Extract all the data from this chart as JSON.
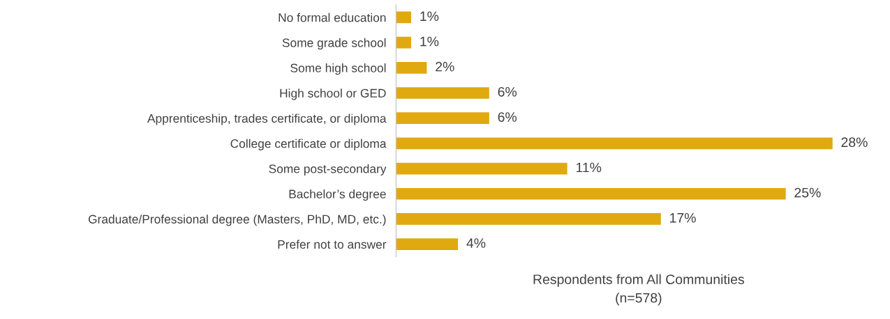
{
  "chart_data": {
    "type": "bar",
    "orientation": "horizontal",
    "categories": [
      "No formal education",
      "Some grade school",
      "Some high school",
      "High school or GED",
      "Apprenticeship, trades certificate, or diploma",
      "College certificate or diploma",
      "Some post-secondary",
      "Bachelor’s degree",
      "Graduate/Professional degree (Masters, PhD, MD, etc.)",
      "Prefer not to answer"
    ],
    "values": [
      1,
      1,
      2,
      6,
      6,
      28,
      11,
      25,
      17,
      4
    ],
    "value_labels": [
      "1%",
      "1%",
      "2%",
      "6%",
      "6%",
      "28%",
      "11%",
      "25%",
      "17%",
      "4%"
    ],
    "color": "#e0a910",
    "xlabel": "Respondents from All Communities\n(n=578)",
    "grid": false,
    "tick_labels": "y"
  }
}
